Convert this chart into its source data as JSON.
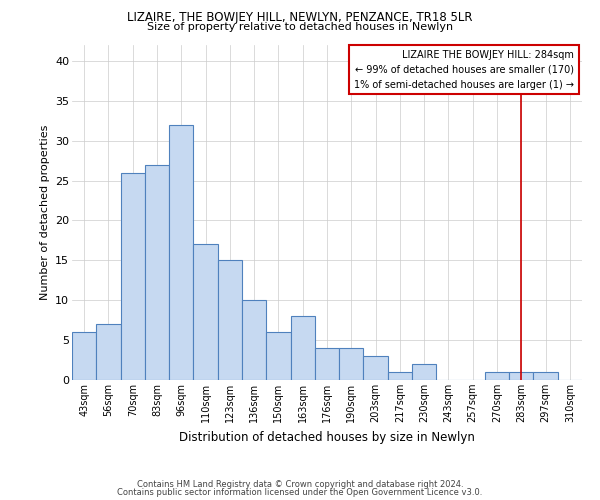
{
  "title": "LIZAIRE, THE BOWJEY HILL, NEWLYN, PENZANCE, TR18 5LR",
  "subtitle": "Size of property relative to detached houses in Newlyn",
  "xlabel": "Distribution of detached houses by size in Newlyn",
  "ylabel": "Number of detached properties",
  "bar_labels": [
    "43sqm",
    "56sqm",
    "70sqm",
    "83sqm",
    "96sqm",
    "110sqm",
    "123sqm",
    "136sqm",
    "150sqm",
    "163sqm",
    "176sqm",
    "190sqm",
    "203sqm",
    "217sqm",
    "230sqm",
    "243sqm",
    "257sqm",
    "270sqm",
    "283sqm",
    "297sqm",
    "310sqm"
  ],
  "bar_values": [
    6,
    7,
    26,
    27,
    32,
    17,
    15,
    10,
    6,
    8,
    4,
    4,
    3,
    1,
    2,
    0,
    0,
    1,
    1,
    1,
    0
  ],
  "bar_color": "#c6d9f1",
  "bar_edge_color": "#4f81bd",
  "ylim": [
    0,
    42
  ],
  "yticks": [
    0,
    5,
    10,
    15,
    20,
    25,
    30,
    35,
    40
  ],
  "annotation_line_x_label": "283sqm",
  "annotation_line_color": "#cc0000",
  "annotation_box_text": "LIZAIRE THE BOWJEY HILL: 284sqm\n← 99% of detached houses are smaller (170)\n1% of semi-detached houses are larger (1) →",
  "footer_line1": "Contains HM Land Registry data © Crown copyright and database right 2024.",
  "footer_line2": "Contains public sector information licensed under the Open Government Licence v3.0.",
  "background_color": "#ffffff",
  "grid_color": "#cccccc"
}
